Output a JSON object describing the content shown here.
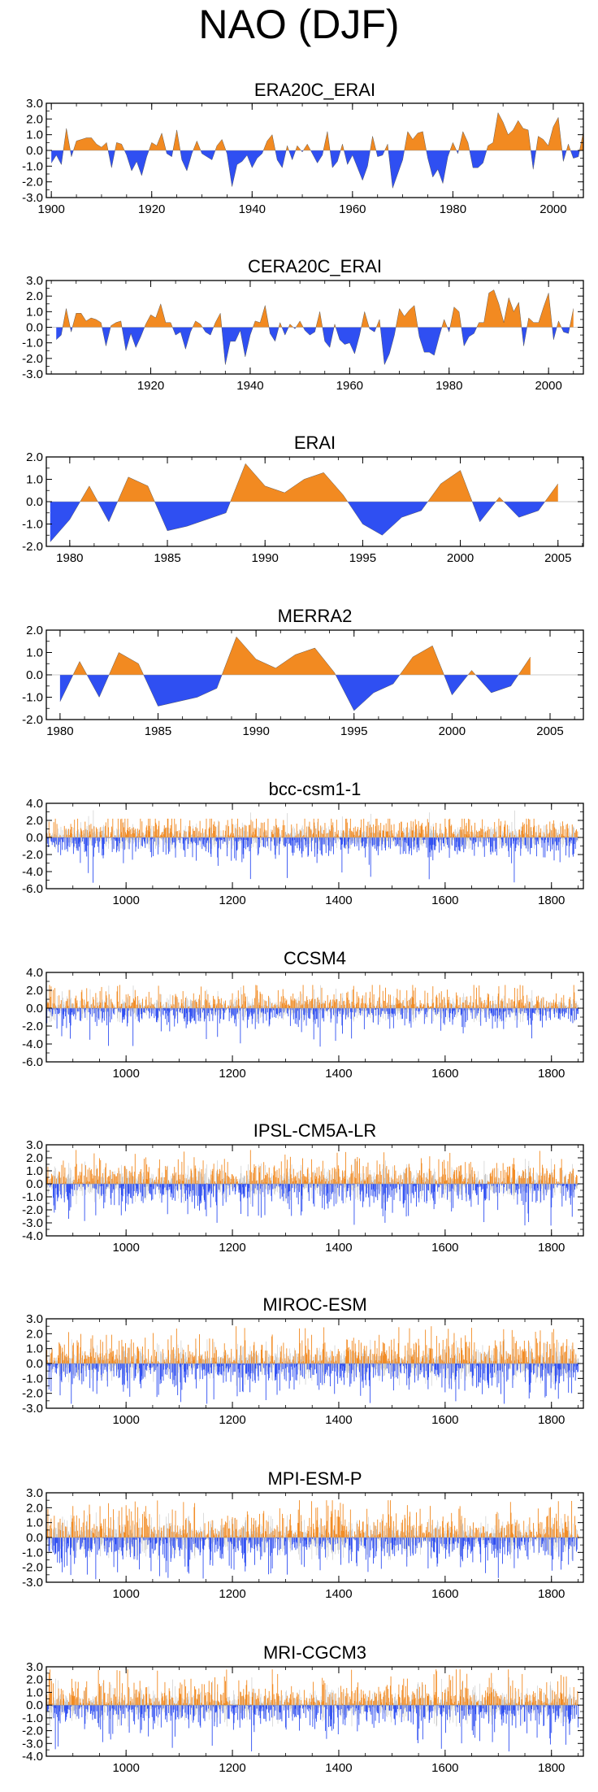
{
  "page": {
    "title": "NAO (DJF)"
  },
  "colors": {
    "positive": "#f28a21",
    "negative": "#2f4ff2",
    "gray": "#b8b8b8"
  },
  "chart_data": [
    {
      "type": "area",
      "title": "ERA20C_ERAI",
      "xlim": [
        1899,
        2006
      ],
      "ylim": [
        -3,
        3
      ],
      "yticks": [
        3.0,
        2.0,
        1.0,
        0.0,
        -1.0,
        -2.0,
        -3.0
      ],
      "ytick_labels": [
        "3.0",
        "2.0",
        "1.0",
        "0.0",
        "-1.0",
        "-2.0",
        "-3.0"
      ],
      "xticks": [
        1900,
        1920,
        1940,
        1960,
        1980,
        2000
      ],
      "xtick_labels": [
        "1900",
        "1920",
        "1940",
        "1960",
        "1980",
        "2000"
      ],
      "x_start": 1900,
      "values": [
        -0.8,
        -0.3,
        -0.9,
        1.4,
        -0.4,
        0.6,
        0.7,
        0.8,
        0.8,
        0.4,
        0.2,
        0.5,
        -1.1,
        0.5,
        0.4,
        -0.3,
        -1.3,
        -0.7,
        -1.6,
        -0.4,
        0.5,
        0.3,
        1.1,
        -0.2,
        -0.4,
        1.3,
        -0.6,
        -1.3,
        -0.2,
        0.6,
        -0.2,
        -0.4,
        -0.6,
        0.3,
        0.7,
        -0.2,
        -2.3,
        -0.9,
        -0.7,
        -0.3,
        -1.1,
        -0.5,
        -0.2,
        0.6,
        1.0,
        -0.6,
        -1.1,
        0.3,
        -0.6,
        0.3,
        -0.1,
        0.4,
        -0.2,
        -0.8,
        -0.3,
        1.2,
        -1.1,
        -0.7,
        0.4,
        -0.9,
        -0.3,
        -1.1,
        -1.9,
        -1.0,
        0.9,
        -0.4,
        -0.3,
        0.4,
        -2.4,
        -1.5,
        -0.6,
        1.2,
        0.7,
        1.1,
        1.2,
        -0.5,
        -1.7,
        -1.2,
        -2.1,
        -0.4,
        0.5,
        -0.2,
        1.2,
        0.5,
        -1.1,
        -1.1,
        -0.8,
        0.3,
        0.5,
        2.4,
        1.8,
        1.0,
        1.3,
        1.9,
        1.4,
        1.3,
        -1.2,
        0.9,
        0.7,
        0.3,
        1.5,
        2.1,
        -0.7,
        0.4,
        -0.5,
        -0.4,
        1.2
      ]
    },
    {
      "type": "area",
      "title": "CERA20C_ERAI",
      "xlim": [
        1899,
        2007
      ],
      "ylim": [
        -3,
        3
      ],
      "yticks": [
        3.0,
        2.0,
        1.0,
        0.0,
        -1.0,
        -2.0,
        -3.0
      ],
      "ytick_labels": [
        "3.0",
        "2.0",
        "1.0",
        "0.0",
        "-1.0",
        "-2.0",
        "-3.0"
      ],
      "xticks": [
        1920,
        1940,
        1960,
        1980,
        2000
      ],
      "xtick_labels": [
        "1920",
        "1940",
        "1960",
        "1980",
        "2000"
      ],
      "x_start": 1901,
      "values": [
        -0.8,
        -0.5,
        1.2,
        -0.3,
        0.9,
        0.9,
        0.4,
        0.6,
        0.5,
        0.3,
        -1.2,
        0.1,
        0.3,
        0.4,
        -1.5,
        -0.4,
        -1.3,
        -0.6,
        0.2,
        0.8,
        0.6,
        1.5,
        0.3,
        0.3,
        -0.5,
        -0.3,
        -1.4,
        -0.3,
        0.4,
        0.2,
        -0.3,
        -0.5,
        0.3,
        0.9,
        -2.4,
        -0.9,
        -0.9,
        -0.2,
        -1.9,
        -0.5,
        0.4,
        0.3,
        1.4,
        -0.4,
        -0.9,
        0.3,
        -0.5,
        0.2,
        -0.1,
        0.4,
        -0.2,
        -0.5,
        -0.3,
        1.0,
        -0.9,
        -1.3,
        0.2,
        -0.8,
        -1.1,
        -1.0,
        -1.7,
        -0.5,
        1.0,
        -0.1,
        -0.3,
        0.5,
        -2.4,
        -1.7,
        -0.5,
        1.2,
        0.7,
        1.1,
        1.4,
        -0.6,
        -1.6,
        -1.6,
        -1.8,
        -0.6,
        0.5,
        -0.3,
        1.3,
        1.0,
        -1.2,
        -0.6,
        -0.4,
        0.3,
        0.3,
        2.2,
        2.4,
        1.5,
        0.3,
        1.9,
        1.0,
        1.6,
        -1.2,
        0.6,
        0.3,
        0.3,
        1.3,
        2.2,
        -0.8,
        0.4,
        -0.3,
        -0.4,
        1.2
      ]
    },
    {
      "type": "area",
      "title": "ERAI",
      "xlim": [
        1978.8,
        2006.3
      ],
      "ylim": [
        -2,
        2
      ],
      "yticks": [
        2.0,
        1.0,
        0.0,
        -1.0,
        -2.0
      ],
      "ytick_labels": [
        "2.0",
        "1.0",
        "0.0",
        "-1.0",
        "-2.0"
      ],
      "xticks": [
        1980,
        1985,
        1990,
        1995,
        2000,
        2005
      ],
      "xtick_labels": [
        "1980",
        "1985",
        "1990",
        "1995",
        "2000",
        "2005"
      ],
      "x_start": 1979,
      "values": [
        -1.8,
        -0.8,
        0.7,
        -0.9,
        1.1,
        0.7,
        -1.3,
        -1.1,
        -0.8,
        -0.5,
        1.7,
        0.7,
        0.4,
        1.0,
        1.3,
        0.3,
        -1.0,
        -1.5,
        -0.7,
        -0.4,
        0.8,
        1.4,
        -0.9,
        0.2,
        -0.7,
        -0.4,
        0.8
      ]
    },
    {
      "type": "area",
      "title": "MERRA2",
      "xlim": [
        1979.3,
        2006.7
      ],
      "ylim": [
        -2,
        2
      ],
      "yticks": [
        2.0,
        1.0,
        0.0,
        -1.0,
        -2.0
      ],
      "ytick_labels": [
        "2.0",
        "1.0",
        "0.0",
        "-1.0",
        "-2.0"
      ],
      "xticks": [
        1980,
        1985,
        1990,
        1995,
        2000,
        2005
      ],
      "xtick_labels": [
        "1980",
        "1985",
        "1990",
        "1995",
        "2000",
        "2005"
      ],
      "x_start": 1980,
      "values": [
        -1.2,
        0.6,
        -1.0,
        1.0,
        0.5,
        -1.4,
        -1.2,
        -1.0,
        -0.6,
        1.7,
        0.7,
        0.3,
        0.9,
        1.2,
        0.1,
        -1.6,
        -0.8,
        -0.4,
        0.8,
        1.3,
        -0.9,
        0.2,
        -0.8,
        -0.5,
        0.8
      ]
    },
    {
      "type": "bar",
      "title": "bcc-csm1-1",
      "xlim": [
        850,
        1860
      ],
      "ylim": [
        -6,
        4
      ],
      "yticks": [
        4.0,
        2.0,
        0.0,
        -2.0,
        -4.0,
        -6.0
      ],
      "ytick_labels": [
        "4.0",
        "2.0",
        "0.0",
        "-2.0",
        "-4.0",
        "-6.0"
      ],
      "xticks": [
        1000,
        1200,
        1400,
        1600,
        1800
      ],
      "xtick_labels": [
        "1000",
        "1200",
        "1400",
        "1600",
        "1800"
      ],
      "x_start": 851,
      "x_end": 1850,
      "amplitude": 1.3,
      "min_value": -5.6,
      "max_value": 2.2,
      "seed": 11
    },
    {
      "type": "bar",
      "title": "CCSM4",
      "xlim": [
        850,
        1860
      ],
      "ylim": [
        -6,
        4
      ],
      "yticks": [
        4.0,
        2.0,
        0.0,
        -2.0,
        -4.0,
        -6.0
      ],
      "ytick_labels": [
        "4.0",
        "2.0",
        "0.0",
        "-2.0",
        "-4.0",
        "-6.0"
      ],
      "xticks": [
        1000,
        1200,
        1400,
        1600,
        1800
      ],
      "xtick_labels": [
        "1000",
        "1200",
        "1400",
        "1600",
        "1800"
      ],
      "x_start": 851,
      "x_end": 1850,
      "amplitude": 1.1,
      "min_value": -4.3,
      "max_value": 2.6,
      "seed": 23
    },
    {
      "type": "bar",
      "title": "IPSL-CM5A-LR",
      "xlim": [
        850,
        1860
      ],
      "ylim": [
        -4,
        3
      ],
      "yticks": [
        3.0,
        2.0,
        1.0,
        0.0,
        -1.0,
        -2.0,
        -3.0,
        -4.0
      ],
      "ytick_labels": [
        "3.0",
        "2.0",
        "1.0",
        "0.0",
        "-1.0",
        "-2.0",
        "-3.0",
        "-4.0"
      ],
      "xticks": [
        1000,
        1200,
        1400,
        1600,
        1800
      ],
      "xtick_labels": [
        "1000",
        "1200",
        "1400",
        "1600",
        "1800"
      ],
      "x_start": 851,
      "x_end": 1850,
      "amplitude": 1.0,
      "min_value": -3.3,
      "max_value": 2.6,
      "seed": 37
    },
    {
      "type": "bar",
      "title": "MIROC-ESM",
      "xlim": [
        850,
        1860
      ],
      "ylim": [
        -3,
        3
      ],
      "yticks": [
        3.0,
        2.0,
        1.0,
        0.0,
        -1.0,
        -2.0,
        -3.0
      ],
      "ytick_labels": [
        "3.0",
        "2.0",
        "1.0",
        "0.0",
        "-1.0",
        "-2.0",
        "-3.0"
      ],
      "xticks": [
        1000,
        1200,
        1400,
        1600,
        1800
      ],
      "xtick_labels": [
        "1000",
        "1200",
        "1400",
        "1600",
        "1800"
      ],
      "x_start": 851,
      "x_end": 1850,
      "amplitude": 1.0,
      "min_value": -2.7,
      "max_value": 2.5,
      "seed": 41
    },
    {
      "type": "bar",
      "title": "MPI-ESM-P",
      "xlim": [
        850,
        1860
      ],
      "ylim": [
        -3,
        3
      ],
      "yticks": [
        3.0,
        2.0,
        1.0,
        0.0,
        -1.0,
        -2.0,
        -3.0
      ],
      "ytick_labels": [
        "3.0",
        "2.0",
        "1.0",
        "0.0",
        "-1.0",
        "-2.0",
        "-3.0"
      ],
      "xticks": [
        1000,
        1200,
        1400,
        1600,
        1800
      ],
      "xtick_labels": [
        "1000",
        "1200",
        "1400",
        "1600",
        "1800"
      ],
      "x_start": 851,
      "x_end": 1850,
      "amplitude": 1.0,
      "min_value": -2.8,
      "max_value": 2.5,
      "seed": 53
    },
    {
      "type": "bar",
      "title": "MRI-CGCM3",
      "xlim": [
        850,
        1860
      ],
      "ylim": [
        -4,
        3
      ],
      "yticks": [
        3.0,
        2.0,
        1.0,
        0.0,
        -1.0,
        -2.0,
        -3.0,
        -4.0
      ],
      "ytick_labels": [
        "3.0",
        "2.0",
        "1.0",
        "0.0",
        "-1.0",
        "-2.0",
        "-3.0",
        "-4.0"
      ],
      "xticks": [
        1000,
        1200,
        1400,
        1600,
        1800
      ],
      "xtick_labels": [
        "1000",
        "1200",
        "1400",
        "1600",
        "1800"
      ],
      "x_start": 851,
      "x_end": 1850,
      "amplitude": 1.05,
      "min_value": -3.7,
      "max_value": 2.8,
      "seed": 67
    }
  ]
}
